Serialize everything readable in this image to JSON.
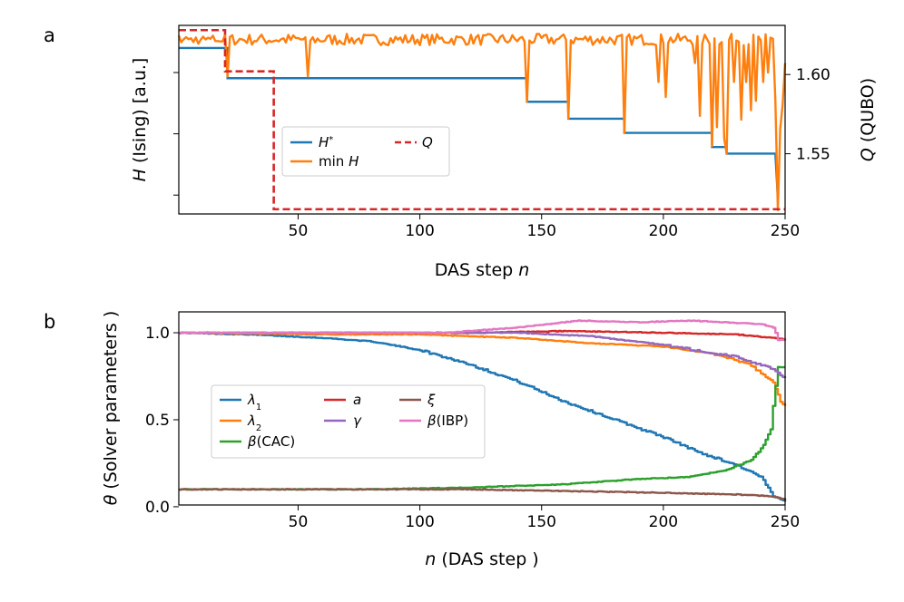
{
  "chart_data": [
    {
      "panel": "a",
      "type": "line",
      "xlabel": "DAS step n",
      "xlabel_prefix": "DAS step ",
      "xlabel_var": "n",
      "ylabel": "H (Ising) [a.u.]",
      "ylabel_var": "H",
      "ylabel_rest": " (Ising) [a.u.]",
      "ylabel_right": "Q (QUBO)",
      "ylabel_right_var": "Q",
      "ylabel_right_rest": " (QUBO)",
      "xlim": [
        1,
        250
      ],
      "ylim": [
        0,
        1
      ],
      "ylim_right": [
        1.512,
        1.631
      ],
      "xticks": [
        50,
        100,
        150,
        200,
        250
      ],
      "yticks_left": [
        0.1,
        0.425,
        0.75
      ],
      "yticks_right": [
        1.55,
        1.6
      ],
      "yticks_right_labels": [
        "1.55",
        "1.60"
      ],
      "legend": {
        "placement": "center",
        "entries": [
          "H*",
          "min H",
          "Q"
        ]
      },
      "series": [
        {
          "name": "H*",
          "label_var": "H",
          "label_sup": "*",
          "color": "#1f77b4",
          "axis": "left",
          "style": "steps",
          "steps": [
            [
              1,
              0.88
            ],
            [
              21,
              0.72
            ],
            [
              144,
              0.595
            ],
            [
              161,
              0.505
            ],
            [
              184,
              0.43
            ],
            [
              220,
              0.355
            ],
            [
              226,
              0.32
            ],
            [
              246,
              0.32
            ]
          ],
          "end_drop": [
            [
              246,
              0.32
            ],
            [
              247,
              0.09
            ]
          ]
        },
        {
          "name": "min H",
          "label_prefix": "min ",
          "label_var": "H",
          "color": "#ff7f0e",
          "axis": "left",
          "style": "noisy",
          "base": 0.925,
          "amplitude": 0.03,
          "seed": 7,
          "segments": [
            [
              1,
              20,
              0.925,
              0.03
            ],
            [
              20,
              21,
              0.73,
              0.0
            ],
            [
              21,
              250,
              0.925,
              0.035
            ]
          ],
          "dips": [
            [
              21,
              0.73
            ],
            [
              54,
              0.73
            ],
            [
              144,
              0.595
            ],
            [
              161,
              0.505
            ],
            [
              184,
              0.43
            ],
            [
              198,
              0.7
            ],
            [
              201,
              0.62
            ],
            [
              213,
              0.8
            ],
            [
              215,
              0.52
            ],
            [
              220,
              0.36
            ],
            [
              222,
              0.46
            ],
            [
              225,
              0.4
            ],
            [
              226,
              0.32
            ],
            [
              229,
              0.7
            ],
            [
              232,
              0.5
            ],
            [
              234,
              0.7
            ],
            [
              236,
              0.55
            ],
            [
              238,
              0.6
            ],
            [
              241,
              0.7
            ],
            [
              243,
              0.75
            ],
            [
              246,
              0.6
            ],
            [
              247,
              0.02
            ],
            [
              248,
              0.45
            ],
            [
              249,
              0.58
            ],
            [
              250,
              0.8
            ]
          ]
        },
        {
          "name": "Q",
          "label_var": "Q",
          "color": "#d62728",
          "axis": "right",
          "style": "dashed-steps",
          "steps": [
            [
              1,
              1.628
            ],
            [
              20,
              1.602
            ],
            [
              40,
              1.515
            ],
            [
              250,
              1.515
            ]
          ]
        }
      ]
    },
    {
      "panel": "b",
      "type": "line",
      "xlabel": "n (DAS step )",
      "xlabel_var": "n",
      "xlabel_rest": " (DAS step )",
      "ylabel": "θ (Solver parameters )",
      "ylabel_var": "θ",
      "ylabel_rest": " (Solver parameters )",
      "xlim": [
        1,
        250
      ],
      "ylim": [
        0.01,
        1.12
      ],
      "xticks": [
        50,
        100,
        150,
        200,
        250
      ],
      "yticks": [
        0.0,
        0.5,
        1.0
      ],
      "ytick_labels": [
        "0.0",
        "0.5",
        "1.0"
      ],
      "legend": {
        "placement": "center-left",
        "entries": [
          "λ1",
          "λ2",
          "β(CAC)",
          "a",
          "γ",
          "ξ",
          "β(IBP)"
        ]
      },
      "series": [
        {
          "name": "λ1",
          "label_var": "λ",
          "label_sub": "1",
          "color": "#1f77b4",
          "points": [
            [
              1,
              1.0
            ],
            [
              30,
              0.99
            ],
            [
              60,
              0.97
            ],
            [
              80,
              0.95
            ],
            [
              100,
              0.9
            ],
            [
              120,
              0.82
            ],
            [
              140,
              0.72
            ],
            [
              160,
              0.6
            ],
            [
              180,
              0.5
            ],
            [
              200,
              0.4
            ],
            [
              215,
              0.31
            ],
            [
              230,
              0.24
            ],
            [
              240,
              0.17
            ],
            [
              245,
              0.06
            ],
            [
              250,
              0.03
            ]
          ]
        },
        {
          "name": "λ2",
          "label_var": "λ",
          "label_sub": "2",
          "color": "#ff7f0e",
          "points": [
            [
              1,
              1.0
            ],
            [
              60,
              0.99
            ],
            [
              100,
              0.99
            ],
            [
              140,
              0.97
            ],
            [
              170,
              0.94
            ],
            [
              200,
              0.92
            ],
            [
              220,
              0.88
            ],
            [
              235,
              0.82
            ],
            [
              245,
              0.72
            ],
            [
              248,
              0.6
            ],
            [
              250,
              0.58
            ]
          ]
        },
        {
          "name": "β(CAC)",
          "label_var": "β",
          "label_rest": "(CAC)",
          "color": "#2ca02c",
          "points": [
            [
              1,
              0.1
            ],
            [
              80,
              0.1
            ],
            [
              120,
              0.11
            ],
            [
              160,
              0.13
            ],
            [
              190,
              0.16
            ],
            [
              210,
              0.17
            ],
            [
              225,
              0.21
            ],
            [
              235,
              0.26
            ],
            [
              241,
              0.35
            ],
            [
              244,
              0.45
            ],
            [
              246,
              0.7
            ],
            [
              247,
              0.8
            ],
            [
              250,
              0.8
            ]
          ]
        },
        {
          "name": "a",
          "label_var": "a",
          "color": "#d62728",
          "points": [
            [
              1,
              1.0
            ],
            [
              60,
              1.0
            ],
            [
              120,
              1.0
            ],
            [
              160,
              1.01
            ],
            [
              200,
              1.0
            ],
            [
              230,
              0.99
            ],
            [
              245,
              0.97
            ],
            [
              250,
              0.96
            ]
          ]
        },
        {
          "name": "γ",
          "label_var": "γ",
          "color": "#9467bd",
          "points": [
            [
              1,
              1.0
            ],
            [
              70,
              1.0
            ],
            [
              120,
              1.0
            ],
            [
              140,
              1.0
            ],
            [
              170,
              0.98
            ],
            [
              200,
              0.93
            ],
            [
              230,
              0.86
            ],
            [
              245,
              0.79
            ],
            [
              250,
              0.74
            ]
          ]
        },
        {
          "name": "ξ",
          "label_var": "ξ",
          "color": "#8c564b",
          "points": [
            [
              1,
              0.1
            ],
            [
              60,
              0.1
            ],
            [
              120,
              0.1
            ],
            [
              160,
              0.09
            ],
            [
              200,
              0.08
            ],
            [
              230,
              0.07
            ],
            [
              245,
              0.06
            ],
            [
              250,
              0.04
            ]
          ]
        },
        {
          "name": "β(IBP)",
          "label_var": "β",
          "label_rest": "(IBP)",
          "color": "#e377c2",
          "points": [
            [
              1,
              1.0
            ],
            [
              60,
              1.0
            ],
            [
              110,
              1.0
            ],
            [
              140,
              1.03
            ],
            [
              165,
              1.07
            ],
            [
              190,
              1.06
            ],
            [
              210,
              1.07
            ],
            [
              240,
              1.05
            ],
            [
              245,
              1.03
            ],
            [
              247,
              0.96
            ],
            [
              250,
              0.96
            ]
          ]
        }
      ]
    }
  ],
  "panel_labels": {
    "a": "a",
    "b": "b"
  }
}
